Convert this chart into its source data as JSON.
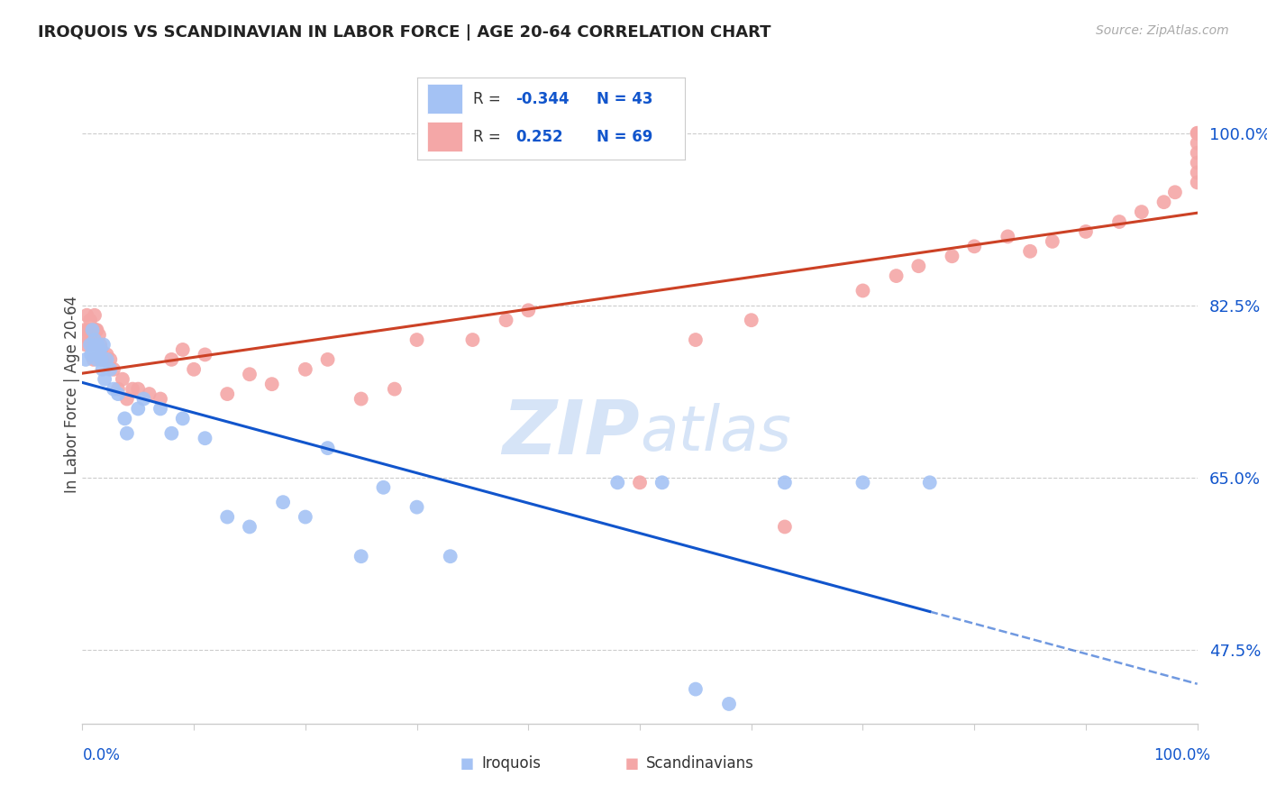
{
  "title": "IROQUOIS VS SCANDINAVIAN IN LABOR FORCE | AGE 20-64 CORRELATION CHART",
  "source": "Source: ZipAtlas.com",
  "ylabel": "In Labor Force | Age 20-64",
  "yticks": [
    0.475,
    0.65,
    0.825,
    1.0
  ],
  "ytick_labels": [
    "47.5%",
    "65.0%",
    "82.5%",
    "100.0%"
  ],
  "blue_color": "#a4c2f4",
  "pink_color": "#f4a7a7",
  "blue_line_color": "#1155cc",
  "pink_line_color": "#cc4125",
  "tick_color": "#1155cc",
  "background_color": "#ffffff",
  "grid_color": "#cccccc",
  "watermark_color": "#d6e4f7",
  "legend_r_iro": "-0.344",
  "legend_n_iro": "43",
  "legend_r_scan": "0.252",
  "legend_n_scan": "69",
  "iro_x": [
    0.003,
    0.007,
    0.008,
    0.009,
    0.01,
    0.011,
    0.012,
    0.013,
    0.014,
    0.015,
    0.016,
    0.017,
    0.018,
    0.019,
    0.02,
    0.022,
    0.025,
    0.028,
    0.032,
    0.038,
    0.04,
    0.05,
    0.055,
    0.07,
    0.08,
    0.09,
    0.11,
    0.13,
    0.15,
    0.18,
    0.2,
    0.22,
    0.25,
    0.27,
    0.3,
    0.33,
    0.48,
    0.52,
    0.55,
    0.58,
    0.63,
    0.7,
    0.76
  ],
  "iro_y": [
    0.77,
    0.785,
    0.775,
    0.8,
    0.78,
    0.79,
    0.78,
    0.77,
    0.785,
    0.775,
    0.78,
    0.77,
    0.76,
    0.785,
    0.75,
    0.77,
    0.76,
    0.74,
    0.735,
    0.71,
    0.695,
    0.72,
    0.73,
    0.72,
    0.695,
    0.71,
    0.69,
    0.61,
    0.6,
    0.625,
    0.61,
    0.68,
    0.57,
    0.64,
    0.62,
    0.57,
    0.645,
    0.645,
    0.435,
    0.42,
    0.645,
    0.645,
    0.645
  ],
  "scan_x": [
    0.001,
    0.002,
    0.003,
    0.004,
    0.005,
    0.006,
    0.007,
    0.008,
    0.009,
    0.01,
    0.011,
    0.012,
    0.013,
    0.014,
    0.015,
    0.016,
    0.017,
    0.018,
    0.019,
    0.02,
    0.022,
    0.025,
    0.028,
    0.032,
    0.036,
    0.04,
    0.045,
    0.05,
    0.06,
    0.07,
    0.08,
    0.09,
    0.1,
    0.11,
    0.13,
    0.15,
    0.17,
    0.2,
    0.22,
    0.25,
    0.28,
    0.3,
    0.35,
    0.38,
    0.4,
    0.5,
    0.55,
    0.6,
    0.63,
    0.7,
    0.73,
    0.75,
    0.78,
    0.8,
    0.83,
    0.85,
    0.87,
    0.9,
    0.93,
    0.95,
    0.97,
    0.98,
    1.0,
    1.0,
    1.0,
    1.0,
    1.0,
    1.0,
    1.0
  ],
  "scan_y": [
    0.795,
    0.8,
    0.785,
    0.815,
    0.8,
    0.79,
    0.81,
    0.8,
    0.785,
    0.77,
    0.815,
    0.8,
    0.8,
    0.785,
    0.795,
    0.785,
    0.78,
    0.77,
    0.77,
    0.77,
    0.775,
    0.77,
    0.76,
    0.74,
    0.75,
    0.73,
    0.74,
    0.74,
    0.735,
    0.73,
    0.77,
    0.78,
    0.76,
    0.775,
    0.735,
    0.755,
    0.745,
    0.76,
    0.77,
    0.73,
    0.74,
    0.79,
    0.79,
    0.81,
    0.82,
    0.645,
    0.79,
    0.81,
    0.6,
    0.84,
    0.855,
    0.865,
    0.875,
    0.885,
    0.895,
    0.88,
    0.89,
    0.9,
    0.91,
    0.92,
    0.93,
    0.94,
    0.95,
    0.96,
    0.97,
    0.98,
    0.99,
    1.0,
    1.0
  ]
}
